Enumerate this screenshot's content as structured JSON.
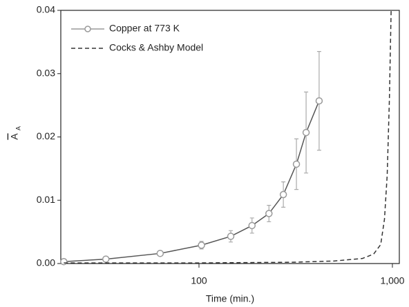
{
  "chart_data": {
    "type": "line",
    "xlabel": "Time (min.)",
    "ylabel": "A",
    "ylabel_subscript": "A",
    "xscale": "log",
    "xlim": [
      19.3,
      1086
    ],
    "xticks": [
      100,
      {
        "value": 1000,
        "label": "1,000"
      }
    ],
    "ylim": [
      0,
      0.04
    ],
    "yticks": [
      {
        "value": 0,
        "label": "0.00"
      },
      0.01,
      0.02,
      0.03,
      0.04
    ],
    "legend": "upper left",
    "series": [
      {
        "name": "Copper at 773 K",
        "color": "#555555",
        "marker_color": "#999999",
        "style": "solid",
        "x": [
          20,
          33,
          63,
          103,
          146,
          188,
          230,
          273,
          319,
          358,
          418
        ],
        "values": [
          0.0003,
          0.0007,
          0.0016,
          0.0029,
          0.0043,
          0.006,
          0.0079,
          0.0109,
          0.0157,
          0.0207,
          0.0257
        ],
        "errors": [
          0.0002,
          0.0002,
          0.0003,
          0.0006,
          0.0009,
          0.0012,
          0.0013,
          0.002,
          0.004,
          0.0064,
          0.0078
        ]
      },
      {
        "name": "Cocks & Ashby Model",
        "color": "#333333",
        "style": "dashed",
        "x": [
          20,
          100,
          300,
          500,
          700,
          800,
          870,
          910,
          940,
          965,
          985
        ],
        "values": [
          0.0001,
          0.0001,
          0.0002,
          0.0004,
          0.0008,
          0.0015,
          0.003,
          0.007,
          0.014,
          0.026,
          0.04
        ]
      }
    ]
  }
}
